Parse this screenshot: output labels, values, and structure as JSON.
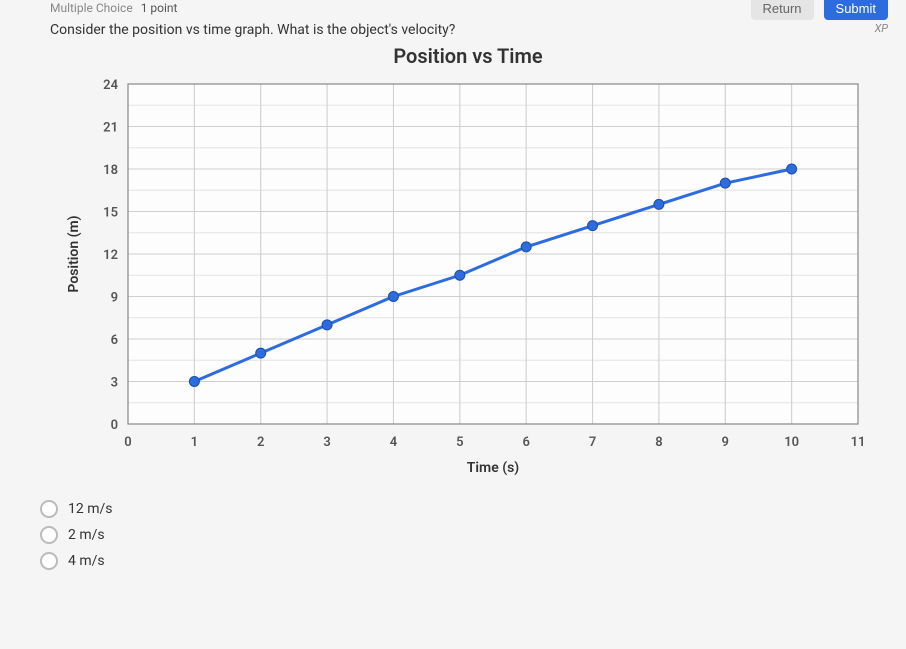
{
  "header": {
    "question_type": "Multiple Choice",
    "points": "1 point",
    "return_label": "Return",
    "submit_label": "Submit",
    "xp_label": "XP"
  },
  "question": {
    "prompt": "Consider the position vs time graph. What is the object's velocity?"
  },
  "chart": {
    "type": "line",
    "title": "Position vs Time",
    "title_fontsize": 20,
    "xlabel": "Time (s)",
    "ylabel": "Position (m)",
    "label_fontsize": 14,
    "tick_fontsize": 13,
    "xlim": [
      0,
      11
    ],
    "ylim": [
      0,
      24
    ],
    "xticks": [
      0,
      1,
      2,
      3,
      4,
      5,
      6,
      7,
      8,
      9,
      10,
      11
    ],
    "yticks": [
      0,
      3,
      6,
      9,
      12,
      15,
      18,
      21,
      24
    ],
    "minor_x_step": 1,
    "minor_y_step": 1.5,
    "background_color": "#ffffff",
    "plot_bg": "#fdfdfd",
    "grid_color": "#cfcfcf",
    "minor_grid_color": "#e4e4e4",
    "axis_color": "#888888",
    "text_color": "#555555",
    "line_color": "#2d6cdf",
    "line_width": 3,
    "marker_color": "#2d6cdf",
    "marker_radius": 5,
    "data": {
      "x": [
        1,
        2,
        3,
        4,
        5,
        6,
        7,
        8,
        9,
        10
      ],
      "y": [
        3,
        5,
        7,
        9,
        10.5,
        12.5,
        14,
        15.5,
        17,
        18
      ]
    }
  },
  "answers": {
    "options": [
      {
        "label": "12 m/s"
      },
      {
        "label": "2 m/s"
      },
      {
        "label": "4 m/s"
      }
    ]
  },
  "colors": {
    "submit_bg": "#2d6cdf",
    "return_bg": "#e5e5e5"
  }
}
